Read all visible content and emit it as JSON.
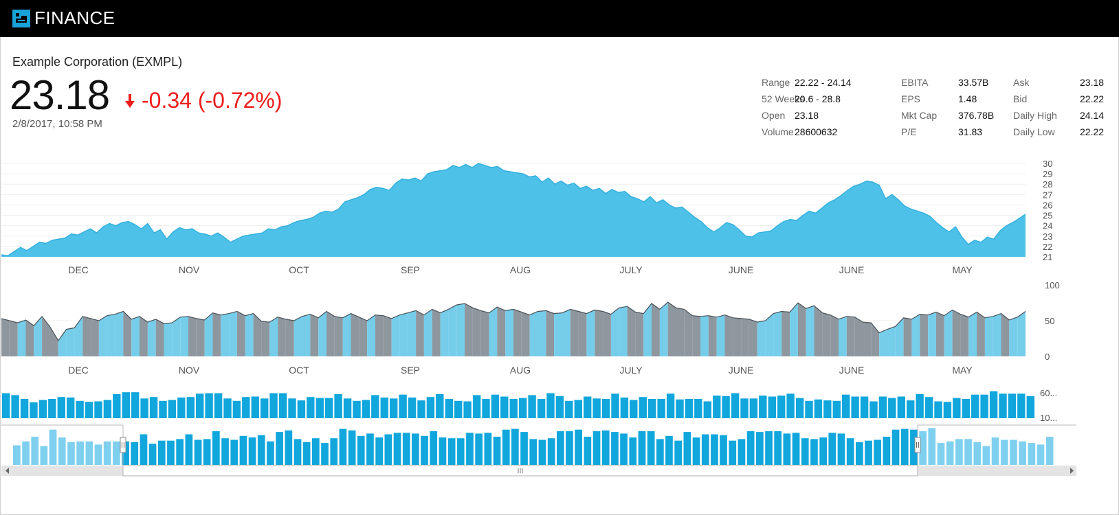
{
  "header": {
    "brand": "FINANCE",
    "logo_icon": "finance-logo-icon"
  },
  "quote": {
    "company": "Example Corporation (EXMPL)",
    "price": "23.18",
    "change": "-0.34 (-0.72%)",
    "change_icon": "down-arrow-icon",
    "timestamp": "2/8/2017, 10:58 PM"
  },
  "stats": {
    "col1": [
      {
        "label": "Range",
        "value": "22.22 - 24.14"
      },
      {
        "label": "52 Weeks",
        "value": "20.6 - 28.8"
      },
      {
        "label": "Open",
        "value": "23.18"
      },
      {
        "label": "Volume",
        "value": "28600632"
      }
    ],
    "col2": [
      {
        "label": "EBITA",
        "value": "33.57B"
      },
      {
        "label": "EPS",
        "value": "1.48"
      },
      {
        "label": "Mkt Cap",
        "value": "376.78B"
      },
      {
        "label": "P/E",
        "value": "31.83"
      }
    ],
    "col3": [
      {
        "label": "Ask",
        "value": "23.18"
      },
      {
        "label": "Bid",
        "value": "22.22"
      },
      {
        "label": "Daily High",
        "value": "24.14"
      },
      {
        "label": "Daily Low",
        "value": "22.22"
      }
    ]
  },
  "colors": {
    "price_area": "#4ec1e8",
    "price_line": "#33b0dd",
    "osc_up": "#76cdea",
    "osc_down": "#8e979e",
    "volume_bar": "#11a6dc",
    "navigator_bar": "#11a6dc",
    "navigator_bar_outside": "#7fd0ef",
    "negative": "#ee1c1c"
  },
  "chart_data": [
    {
      "type": "area",
      "name": "price",
      "x_ticks": [
        "DEC",
        "NOV",
        "OCT",
        "SEP",
        "AUG",
        "JULY",
        "JUNE",
        "JUNE",
        "MAY"
      ],
      "y_ticks": [
        "30",
        "29",
        "28",
        "27",
        "26",
        "25",
        "24",
        "23",
        "22",
        "21"
      ],
      "ylim": [
        21,
        30
      ],
      "values": [
        21.2,
        21.1,
        21.5,
        21.9,
        21.6,
        22.0,
        22.4,
        22.3,
        22.6,
        22.7,
        22.8,
        23.2,
        23.1,
        23.4,
        23.7,
        23.3,
        23.9,
        24.2,
        24.0,
        24.3,
        24.4,
        24.1,
        23.7,
        24.2,
        23.3,
        23.6,
        22.7,
        23.4,
        23.8,
        23.6,
        23.7,
        23.3,
        23.2,
        23.0,
        23.3,
        22.9,
        22.4,
        22.7,
        23.0,
        23.1,
        23.2,
        23.3,
        23.7,
        23.6,
        23.9,
        24.0,
        24.3,
        24.5,
        24.6,
        24.8,
        25.2,
        25.4,
        25.3,
        25.6,
        26.3,
        26.5,
        26.7,
        27.0,
        27.5,
        27.7,
        27.6,
        27.4,
        28.1,
        28.5,
        28.4,
        28.6,
        28.3,
        29.0,
        29.2,
        29.3,
        29.4,
        29.8,
        29.6,
        29.9,
        29.6,
        30.0,
        29.8,
        29.6,
        29.7,
        29.3,
        29.2,
        29.1,
        29.0,
        28.7,
        28.8,
        28.2,
        28.6,
        28.0,
        28.3,
        27.9,
        28.1,
        27.6,
        27.8,
        27.4,
        27.6,
        27.1,
        27.5,
        27.2,
        27.3,
        26.8,
        26.6,
        26.3,
        26.8,
        26.2,
        26.5,
        26.0,
        25.7,
        25.8,
        25.3,
        24.8,
        24.4,
        23.8,
        23.4,
        23.8,
        24.3,
        24.1,
        23.6,
        23.0,
        22.9,
        23.3,
        23.4,
        23.5,
        24.0,
        24.4,
        24.6,
        24.5,
        25.0,
        25.4,
        25.2,
        25.7,
        26.2,
        26.5,
        26.9,
        27.4,
        27.8,
        28.0,
        28.3,
        28.2,
        27.9,
        26.6,
        27.0,
        26.5,
        25.9,
        25.6,
        25.4,
        25.2,
        24.9,
        24.3,
        23.8,
        23.4,
        23.9,
        22.9,
        22.2,
        22.6,
        22.4,
        22.9,
        22.7,
        23.5,
        24.0,
        24.3,
        24.7,
        25.1
      ],
      "color": "#4ec1e8"
    },
    {
      "type": "area",
      "name": "oscillator",
      "x_ticks": [
        "DEC",
        "NOV",
        "OCT",
        "SEP",
        "AUG",
        "JULY",
        "JUNE",
        "JUNE",
        "MAY"
      ],
      "y_ticks": [
        "100",
        "50",
        "0"
      ],
      "ylim": [
        0,
        100
      ],
      "values": [
        53,
        50,
        47,
        51,
        43,
        56,
        41,
        22,
        38,
        40,
        56,
        53,
        50,
        57,
        59,
        63,
        52,
        56,
        48,
        52,
        46,
        47,
        55,
        56,
        53,
        51,
        61,
        58,
        60,
        63,
        57,
        60,
        49,
        48,
        55,
        52,
        50,
        56,
        59,
        54,
        63,
        56,
        54,
        60,
        55,
        50,
        58,
        57,
        53,
        58,
        61,
        64,
        58,
        66,
        61,
        66,
        72,
        74,
        68,
        64,
        61,
        69,
        64,
        66,
        62,
        58,
        63,
        64,
        60,
        61,
        66,
        63,
        60,
        65,
        63,
        59,
        68,
        70,
        62,
        60,
        74,
        66,
        76,
        68,
        66,
        57,
        56,
        57,
        55,
        58,
        54,
        53,
        52,
        48,
        50,
        60,
        63,
        62,
        75,
        67,
        71,
        61,
        58,
        52,
        56,
        55,
        48,
        47,
        33,
        38,
        42,
        54,
        52,
        59,
        58,
        62,
        57,
        65,
        59,
        55,
        62,
        54,
        56,
        60,
        51,
        55,
        63
      ],
      "color_up": "#76cdea",
      "color_down": "#8e979e"
    },
    {
      "type": "bar",
      "name": "volume",
      "y_ticks": [
        "60...",
        "10..."
      ],
      "ylim": [
        0,
        60
      ],
      "values": [
        52,
        48,
        40,
        33,
        38,
        40,
        44,
        43,
        36,
        34,
        35,
        38,
        50,
        54,
        54,
        41,
        44,
        36,
        38,
        43,
        44,
        51,
        52,
        52,
        41,
        36,
        44,
        45,
        41,
        52,
        52,
        41,
        37,
        44,
        42,
        42,
        50,
        41,
        36,
        38,
        48,
        43,
        41,
        49,
        43,
        37,
        44,
        50,
        40,
        36,
        35,
        48,
        40,
        49,
        45,
        40,
        42,
        48,
        40,
        52,
        46,
        36,
        38,
        45,
        41,
        40,
        51,
        43,
        38,
        44,
        40,
        40,
        51,
        39,
        40,
        40,
        35,
        47,
        46,
        52,
        41,
        41,
        47,
        45,
        47,
        51,
        42,
        36,
        39,
        37,
        36,
        49,
        45,
        45,
        35,
        45,
        42,
        45,
        37,
        50,
        44,
        35,
        34,
        42,
        40,
        49,
        49,
        56,
        51,
        51,
        51,
        46
      ],
      "color": "#11a6dc"
    },
    {
      "type": "bar",
      "name": "navigator",
      "values": [
        25,
        30,
        36,
        24,
        45,
        35,
        29,
        30,
        30,
        26,
        30,
        30,
        30,
        29,
        39,
        27,
        31,
        31,
        33,
        39,
        32,
        33,
        43,
        34,
        32,
        37,
        35,
        38,
        30,
        42,
        44,
        33,
        29,
        34,
        28,
        34,
        46,
        44,
        37,
        40,
        35,
        39,
        41,
        41,
        40,
        37,
        43,
        35,
        34,
        34,
        41,
        40,
        41,
        36,
        45,
        46,
        42,
        33,
        32,
        34,
        43,
        43,
        45,
        36,
        43,
        44,
        42,
        40,
        35,
        43,
        43,
        33,
        37,
        31,
        42,
        35,
        39,
        39,
        38,
        31,
        33,
        43,
        42,
        43,
        43,
        40,
        41,
        34,
        33,
        35,
        41,
        40,
        34,
        29,
        31,
        32,
        36,
        45,
        46,
        45,
        43,
        47,
        28,
        30,
        33,
        33,
        29,
        24,
        35,
        32,
        32,
        30,
        28,
        26,
        36
      ],
      "color": "#11a6dc"
    }
  ]
}
